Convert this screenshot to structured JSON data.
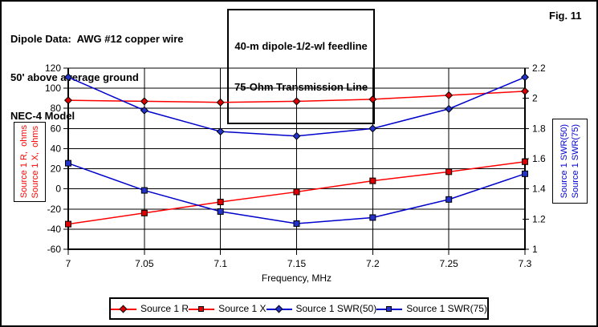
{
  "header": {
    "left_lines": [
      "Dipole Data:  AWG #12 copper wire",
      "50' above average ground",
      "NEC-4 Model"
    ],
    "center_box_lines": [
      "40-m dipole-1/2-wl feedline",
      "75-Ohm Transmission Line"
    ],
    "fig_label": "Fig. 11"
  },
  "chart_data": {
    "type": "line",
    "title": "",
    "xlabel": "Frequency, MHz",
    "ylabel_left_lines": [
      "Source 1 R,  ohms",
      "Source 1 X,  ohms"
    ],
    "ylabel_right_lines": [
      "Source 1 SWR(50)",
      "Source 1 SWR(75)"
    ],
    "x": [
      7,
      7.05,
      7.1,
      7.15,
      7.2,
      7.25,
      7.3
    ],
    "x_axis": {
      "min": 7,
      "max": 7.3,
      "step": 0.05
    },
    "left_axis": {
      "min": -60,
      "max": 120,
      "step": 20
    },
    "right_axis": {
      "min": 1,
      "max": 2.2,
      "step": 0.2
    },
    "grid": true,
    "legend_position": "bottom",
    "series": [
      {
        "name": "Source 1 R",
        "axis": "left",
        "marker": "diamond",
        "color": "#ff0000",
        "marker_color": "#dd0000",
        "values": [
          88,
          87,
          86,
          87,
          89,
          93,
          97
        ]
      },
      {
        "name": "Source 1 X",
        "axis": "left",
        "marker": "square",
        "color": "#ff0000",
        "marker_color": "#dd0000",
        "values": [
          -35,
          -24,
          -13,
          -3,
          8,
          17,
          27
        ]
      },
      {
        "name": "Source 1 SWR(50)",
        "axis": "right",
        "marker": "diamond",
        "color": "#0000cc",
        "marker_color": "#2233cc",
        "values": [
          2.14,
          1.92,
          1.78,
          1.75,
          1.8,
          1.93,
          2.14
        ]
      },
      {
        "name": "Source 1 SWR(75)",
        "axis": "right",
        "marker": "square",
        "color": "#0000cc",
        "marker_color": "#2233cc",
        "values": [
          1.57,
          1.39,
          1.25,
          1.17,
          1.21,
          1.33,
          1.5
        ]
      }
    ]
  },
  "colors": {
    "red_series": "#ff0000",
    "blue_series": "#0000cc",
    "axis": "#000000",
    "background": "#ffffff"
  }
}
